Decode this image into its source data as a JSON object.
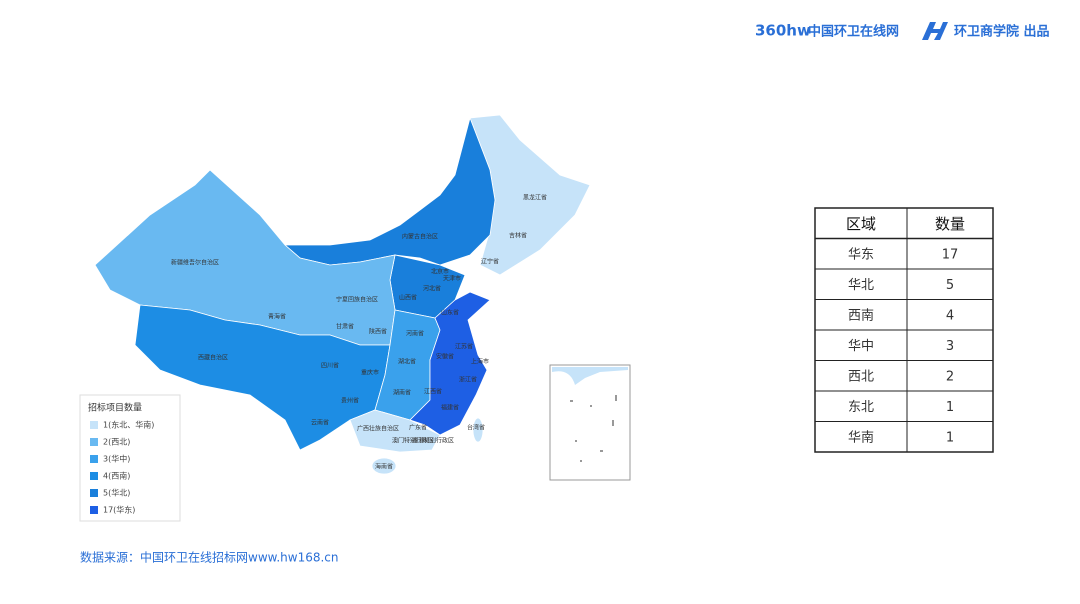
{
  "header": {
    "logo": "360hw",
    "site": "中国环卫在线网",
    "producer": "环卫商学院 出品"
  },
  "map": {
    "legend": {
      "title": "招标项目数量",
      "items": [
        {
          "label": "1(东北、华南)",
          "color": "#c6e3f9"
        },
        {
          "label": "2(西北)",
          "color": "#69b9f1"
        },
        {
          "label": "3(华中)",
          "color": "#3aa1ec"
        },
        {
          "label": "4(西南)",
          "color": "#1d8de4"
        },
        {
          "label": "5(华北)",
          "color": "#197fdb"
        },
        {
          "label": "17(华东)",
          "color": "#1e5fe4"
        }
      ]
    },
    "provinces": [
      "黑龙江省",
      "吉林省",
      "辽宁省",
      "内蒙古自治区",
      "北京市",
      "天津市",
      "河北省",
      "山西省",
      "山东省",
      "新疆维吾尔自治区",
      "青海省",
      "甘肃省",
      "宁夏回族自治区",
      "陕西省",
      "河南省",
      "江苏省",
      "安徽省",
      "上海市",
      "湖北省",
      "四川省",
      "重庆市",
      "浙江省",
      "西藏自治区",
      "贵州省",
      "湖南省",
      "江西省",
      "福建省",
      "云南省",
      "广西壮族自治区",
      "广东省",
      "台湾省",
      "海南省",
      "澳门特别行政区",
      "香港特别行政区"
    ]
  },
  "table": {
    "header": [
      "区域",
      "数量"
    ],
    "rows": [
      [
        "华东",
        17
      ],
      [
        "华北",
        5
      ],
      [
        "西南",
        4
      ],
      [
        "华中",
        3
      ],
      [
        "西北",
        2
      ],
      [
        "东北",
        1
      ],
      [
        "华南",
        1
      ]
    ]
  },
  "source": "数据来源：中国环卫在线招标网www.hw168.cn"
}
